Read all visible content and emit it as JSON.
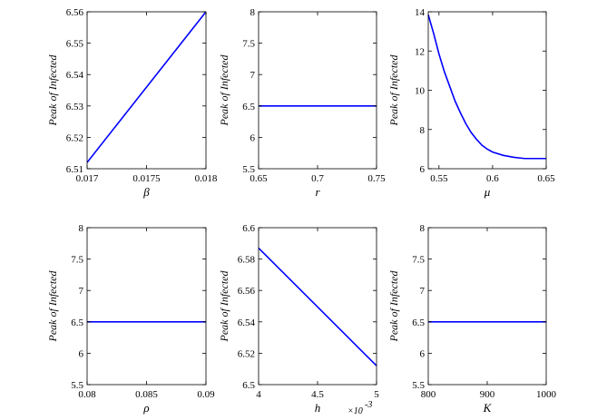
{
  "chart_data": [
    {
      "type": "line",
      "xlabel": "β",
      "ylabel": "Peak of Infected",
      "xlim": [
        0.017,
        0.018
      ],
      "ylim": [
        6.51,
        6.56
      ],
      "xticks": [
        0.017,
        0.0175,
        0.018
      ],
      "xtick_labels": [
        "0.017",
        "0.0175",
        "0.018"
      ],
      "yticks": [
        6.51,
        6.52,
        6.53,
        6.54,
        6.55,
        6.56
      ],
      "ytick_labels": [
        "6.51",
        "6.52",
        "6.53",
        "6.54",
        "6.55",
        "6.56"
      ],
      "series": [
        {
          "x": [
            0.017,
            0.018
          ],
          "y": [
            6.512,
            6.56
          ],
          "color": "#0000ff"
        }
      ]
    },
    {
      "type": "line",
      "xlabel": "r",
      "ylabel": "Peak of Infected",
      "xlim": [
        0.65,
        0.75
      ],
      "ylim": [
        5.5,
        8
      ],
      "xticks": [
        0.65,
        0.7,
        0.75
      ],
      "xtick_labels": [
        "0.65",
        "0.7",
        "0.75"
      ],
      "yticks": [
        5.5,
        6,
        6.5,
        7,
        7.5,
        8
      ],
      "ytick_labels": [
        "5.5",
        "6",
        "6.5",
        "7",
        "7.5",
        "8"
      ],
      "series": [
        {
          "x": [
            0.65,
            0.75
          ],
          "y": [
            6.5,
            6.5
          ],
          "color": "#0000ff"
        }
      ]
    },
    {
      "type": "line",
      "xlabel": "μ",
      "ylabel": "Peak of Infected",
      "xlim": [
        0.54,
        0.65
      ],
      "ylim": [
        6,
        14
      ],
      "xticks": [
        0.55,
        0.6,
        0.65
      ],
      "xtick_labels": [
        "0.55",
        "0.6",
        "0.65"
      ],
      "yticks": [
        6,
        8,
        10,
        12,
        14
      ],
      "ytick_labels": [
        "6",
        "8",
        "10",
        "12",
        "14"
      ],
      "series": [
        {
          "x": [
            0.54,
            0.545,
            0.55,
            0.555,
            0.56,
            0.565,
            0.57,
            0.575,
            0.58,
            0.585,
            0.59,
            0.595,
            0.6,
            0.61,
            0.62,
            0.63,
            0.64,
            0.65
          ],
          "y": [
            13.85,
            12.9,
            11.85,
            10.95,
            10.2,
            9.45,
            8.85,
            8.3,
            7.85,
            7.5,
            7.2,
            7.0,
            6.85,
            6.68,
            6.58,
            6.52,
            6.52,
            6.52
          ],
          "color": "#0000ff"
        }
      ]
    },
    {
      "type": "line",
      "xlabel": "ρ",
      "ylabel": "Peak of Infected",
      "xlim": [
        0.08,
        0.09
      ],
      "ylim": [
        5.5,
        8
      ],
      "xticks": [
        0.08,
        0.085,
        0.09
      ],
      "xtick_labels": [
        "0.08",
        "0.085",
        "0.09"
      ],
      "yticks": [
        5.5,
        6,
        6.5,
        7,
        7.5,
        8
      ],
      "ytick_labels": [
        "5.5",
        "6",
        "6.5",
        "7",
        "7.5",
        "8"
      ],
      "series": [
        {
          "x": [
            0.08,
            0.09
          ],
          "y": [
            6.5,
            6.5
          ],
          "color": "#0000ff"
        }
      ]
    },
    {
      "type": "line",
      "xlabel": "h",
      "ylabel": "Peak of Infected",
      "x_exponent_label": "×10",
      "x_exponent_power": "-3",
      "xlim": [
        4,
        5
      ],
      "ylim": [
        6.5,
        6.6
      ],
      "xticks": [
        4,
        4.5,
        5
      ],
      "xtick_labels": [
        "4",
        "4.5",
        "5"
      ],
      "yticks": [
        6.5,
        6.52,
        6.54,
        6.56,
        6.58,
        6.6
      ],
      "ytick_labels": [
        "6.5",
        "6.52",
        "6.54",
        "6.56",
        "6.58",
        "6.6"
      ],
      "series": [
        {
          "x": [
            4,
            5
          ],
          "y": [
            6.587,
            6.512
          ],
          "color": "#0000ff"
        }
      ]
    },
    {
      "type": "line",
      "xlabel": "K",
      "ylabel": "Peak of Infected",
      "xlim": [
        800,
        1000
      ],
      "ylim": [
        5.5,
        8
      ],
      "xticks": [
        800,
        900,
        1000
      ],
      "xtick_labels": [
        "800",
        "900",
        "1000"
      ],
      "yticks": [
        5.5,
        6,
        6.5,
        7,
        7.5,
        8
      ],
      "ytick_labels": [
        "5.5",
        "6",
        "6.5",
        "7",
        "7.5",
        "8"
      ],
      "series": [
        {
          "x": [
            800,
            1000
          ],
          "y": [
            6.5,
            6.5
          ],
          "color": "#0000ff"
        }
      ]
    }
  ]
}
